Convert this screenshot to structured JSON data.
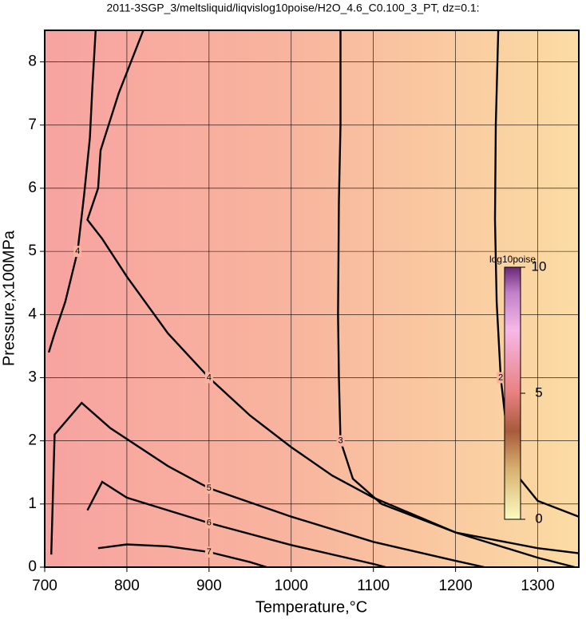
{
  "chart_data": {
    "type": "contour",
    "title": "2011-3SGP_3/meltsliquid/liqvislog10poise/H2O_4.6_C0.100_3_PT, dz=0.1:",
    "x_label": "Temperature,°C",
    "y_label": "Pressure,x100MPa",
    "xlim": [
      700,
      1350
    ],
    "xticks": [
      700,
      800,
      900,
      1000,
      1100,
      1200,
      1300
    ],
    "ylim": [
      0,
      8.5
    ],
    "yticks": [
      0,
      1,
      2,
      3,
      4,
      5,
      6,
      7,
      8
    ],
    "grid": true,
    "colorbar": {
      "label": "log10poise",
      "lim": [
        0,
        10
      ],
      "ticks": [
        0,
        5,
        10
      ]
    },
    "contours": [
      {
        "level": 4,
        "x": [
          762,
          758,
          755,
          748,
          740,
          725,
          712,
          705
        ],
        "y": [
          8.5,
          7.6,
          6.8,
          5.9,
          5.0,
          4.2,
          3.7,
          3.4
        ]
      },
      {
        "level": 4,
        "x": [
          820,
          790,
          768,
          765,
          752,
          770,
          800,
          850,
          900,
          950,
          1000,
          1050,
          1100,
          1200,
          1300,
          1345
        ],
        "y": [
          8.5,
          7.5,
          6.6,
          6.0,
          5.5,
          5.2,
          4.6,
          3.7,
          3.0,
          2.4,
          1.9,
          1.45,
          1.1,
          0.55,
          0.15,
          0
        ]
      },
      {
        "level": 3,
        "x": [
          1060,
          1060,
          1058,
          1057,
          1058,
          1060,
          1075,
          1110,
          1200,
          1300,
          1350
        ],
        "y": [
          8.5,
          7.0,
          5.8,
          4.0,
          3.0,
          2.0,
          1.4,
          1.0,
          0.55,
          0.3,
          0.22
        ]
      },
      {
        "level": 2,
        "x": [
          1252,
          1249,
          1248,
          1250,
          1255,
          1262,
          1272,
          1300,
          1350
        ],
        "y": [
          8.5,
          7.0,
          5.5,
          4.2,
          3.0,
          2.2,
          1.5,
          1.05,
          0.8
        ]
      },
      {
        "level": 5,
        "x": [
          708,
          712,
          745,
          780,
          850,
          900,
          1000,
          1100,
          1200,
          1235
        ],
        "y": [
          0.2,
          2.1,
          2.6,
          2.2,
          1.6,
          1.25,
          0.8,
          0.4,
          0.1,
          0
        ]
      },
      {
        "level": 6,
        "x": [
          752,
          770,
          800,
          900,
          1000,
          1100,
          1115
        ],
        "y": [
          0.9,
          1.35,
          1.1,
          0.7,
          0.35,
          0.05,
          0
        ]
      },
      {
        "level": 7,
        "x": [
          765,
          800,
          850,
          900,
          950,
          970
        ],
        "y": [
          0.3,
          0.36,
          0.33,
          0.24,
          0.08,
          0
        ]
      }
    ]
  }
}
